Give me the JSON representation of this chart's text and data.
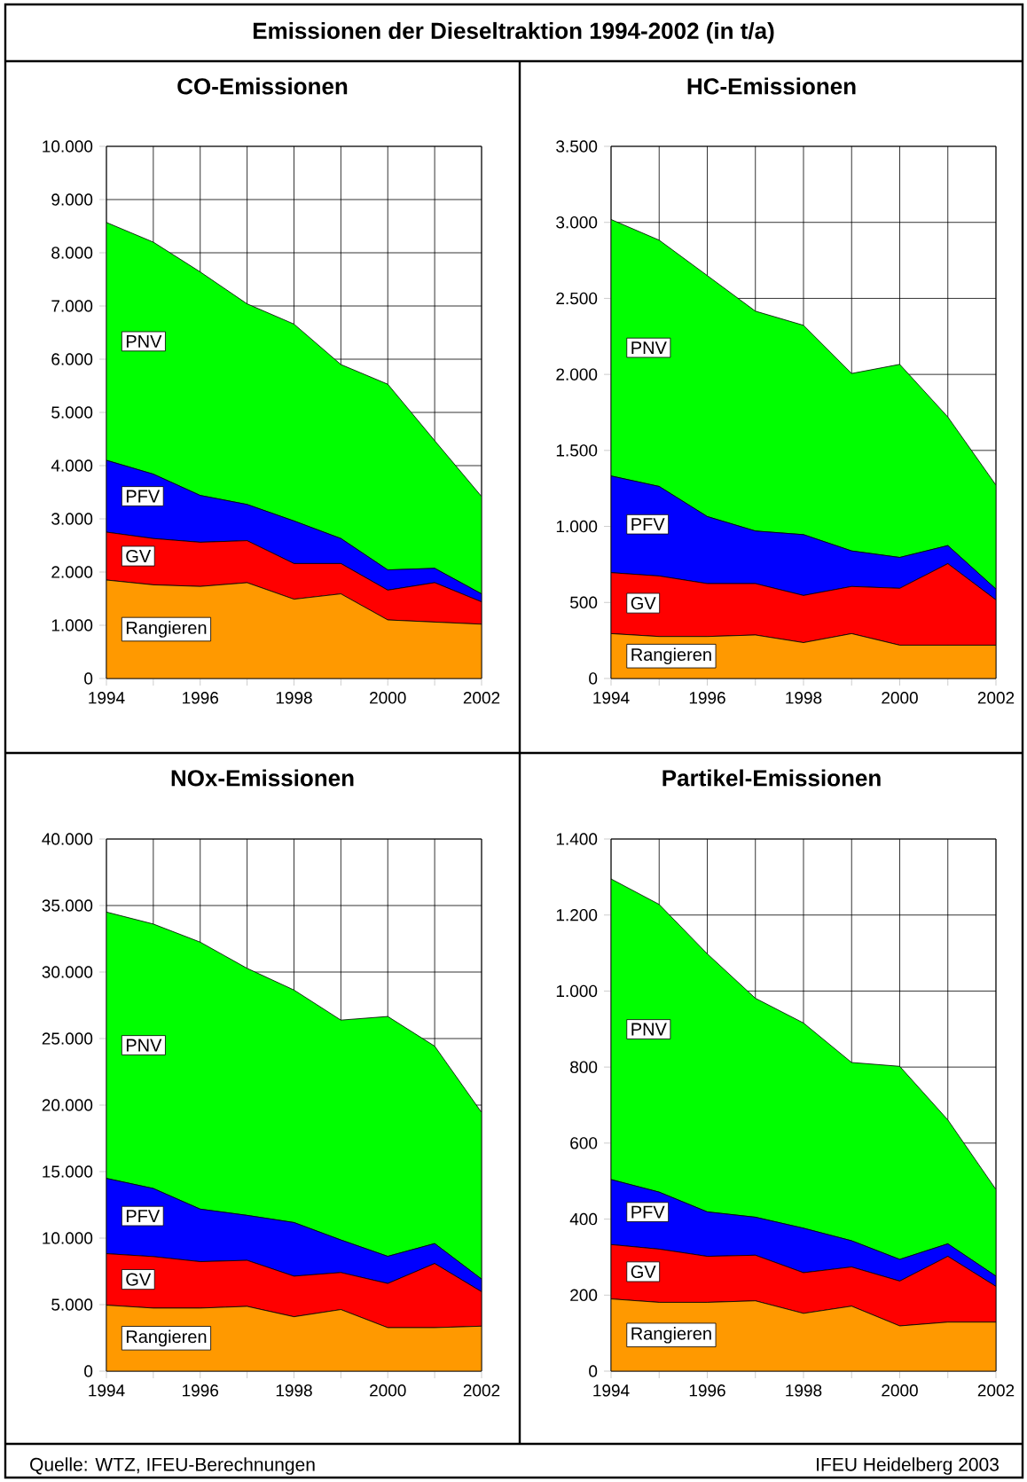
{
  "chart_data": [
    {
      "type": "area",
      "title": "CO-Emissionen",
      "stacked": true,
      "grid": true,
      "annotations": [
        "Emissionen der Dieseltraktion 1994-2002 (in t/a)",
        "Quelle: WTZ, IFEU-Berechnungen",
        "IFEU Heidelberg 2003"
      ],
      "x": [
        1994,
        1995,
        1996,
        1997,
        1998,
        1999,
        2000,
        2001,
        2002
      ],
      "xlim": [
        1994,
        2002
      ],
      "xticks": [
        1994,
        {
          "value": 1995,
          "label": null
        },
        1996,
        {
          "value": 1997,
          "label": null
        },
        1998,
        {
          "value": 1999,
          "label": null
        },
        2000,
        {
          "value": 2001,
          "label": null
        },
        2002
      ],
      "ylim": [
        0,
        10000
      ],
      "yticks": [
        0,
        {
          "value": 1000,
          "label": "1.000"
        },
        {
          "value": 2000,
          "label": "2.000"
        },
        {
          "value": 3000,
          "label": "3.000"
        },
        {
          "value": 4000,
          "label": "4.000"
        },
        {
          "value": 5000,
          "label": "5.000"
        },
        {
          "value": 6000,
          "label": "6.000"
        },
        {
          "value": 7000,
          "label": "7.000"
        },
        {
          "value": 8000,
          "label": "8.000"
        },
        {
          "value": 9000,
          "label": "9.000"
        },
        {
          "value": 10000,
          "label": "10.000"
        }
      ],
      "series": [
        {
          "name": "Rangieren",
          "color": "#ff9900",
          "values": [
            1850,
            1760,
            1730,
            1800,
            1490,
            1590,
            1100,
            1060,
            1020
          ]
        },
        {
          "name": "GV",
          "color": "#ff0000",
          "values": [
            900,
            870,
            830,
            790,
            670,
            570,
            560,
            740,
            420
          ]
        },
        {
          "name": "PFV",
          "color": "#0000ff",
          "values": [
            1350,
            1210,
            880,
            680,
            800,
            470,
            380,
            270,
            150
          ]
        },
        {
          "name": "PNV",
          "color": "#00ff00",
          "values": [
            4470,
            4360,
            4200,
            3770,
            3700,
            3270,
            3490,
            2400,
            1830
          ]
        }
      ]
    },
    {
      "type": "area",
      "title": "HC-Emissionen",
      "stacked": true,
      "grid": true,
      "x": [
        1994,
        1995,
        1996,
        1997,
        1998,
        1999,
        2000,
        2001,
        2002
      ],
      "xlim": [
        1994,
        2002
      ],
      "xticks": [
        1994,
        {
          "value": 1995,
          "label": null
        },
        1996,
        {
          "value": 1997,
          "label": null
        },
        1998,
        {
          "value": 1999,
          "label": null
        },
        2000,
        {
          "value": 2001,
          "label": null
        },
        2002
      ],
      "ylim": [
        0,
        3500
      ],
      "yticks": [
        0,
        500,
        {
          "value": 1000,
          "label": "1.000"
        },
        {
          "value": 1500,
          "label": "1.500"
        },
        {
          "value": 2000,
          "label": "2.000"
        },
        {
          "value": 2500,
          "label": "2.500"
        },
        {
          "value": 3000,
          "label": "3.000"
        },
        {
          "value": 3500,
          "label": "3.500"
        }
      ],
      "series": [
        {
          "name": "Rangieren",
          "color": "#ff9900",
          "values": [
            295,
            276,
            276,
            286,
            236,
            295,
            219,
            219,
            219
          ]
        },
        {
          "name": "GV",
          "color": "#ff0000",
          "values": [
            401,
            398,
            348,
            338,
            310,
            310,
            374,
            536,
            298
          ]
        },
        {
          "name": "PFV",
          "color": "#0000ff",
          "values": [
            636,
            589,
            441,
            346,
            400,
            234,
            203,
            119,
            71
          ]
        },
        {
          "name": "PNV",
          "color": "#00ff00",
          "values": [
            1687,
            1620,
            1585,
            1446,
            1377,
            1167,
            1270,
            846,
            684
          ]
        }
      ]
    },
    {
      "type": "area",
      "title": "NOx-Emissionen",
      "stacked": true,
      "grid": true,
      "x": [
        1994,
        1995,
        1996,
        1997,
        1998,
        1999,
        2000,
        2001,
        2002
      ],
      "xlim": [
        1994,
        2002
      ],
      "xticks": [
        1994,
        {
          "value": 1995,
          "label": null
        },
        1996,
        {
          "value": 1997,
          "label": null
        },
        1998,
        {
          "value": 1999,
          "label": null
        },
        2000,
        {
          "value": 2001,
          "label": null
        },
        2002
      ],
      "ylim": [
        0,
        40000
      ],
      "yticks": [
        0,
        {
          "value": 5000,
          "label": "5.000"
        },
        {
          "value": 10000,
          "label": "10.000"
        },
        {
          "value": 15000,
          "label": "15.000"
        },
        {
          "value": 20000,
          "label": "20.000"
        },
        {
          "value": 25000,
          "label": "25.000"
        },
        {
          "value": 30000,
          "label": "30.000"
        },
        {
          "value": 35000,
          "label": "35.000"
        },
        {
          "value": 40000,
          "label": "40.000"
        }
      ],
      "series": [
        {
          "name": "Rangieren",
          "color": "#ff9900",
          "values": [
            4960,
            4740,
            4740,
            4870,
            4090,
            4630,
            3270,
            3270,
            3380
          ]
        },
        {
          "name": "GV",
          "color": "#ff0000",
          "values": [
            3870,
            3870,
            3490,
            3460,
            3050,
            2780,
            3320,
            4820,
            2590
          ]
        },
        {
          "name": "PFV",
          "color": "#0000ff",
          "values": [
            5660,
            5120,
            3950,
            3380,
            4030,
            2450,
            2040,
            1500,
            950
          ]
        },
        {
          "name": "PNV",
          "color": "#00ff00",
          "values": [
            20020,
            19880,
            20070,
            18570,
            17480,
            16530,
            18030,
            14840,
            12530
          ]
        }
      ]
    },
    {
      "type": "area",
      "title": "Partikel-Emissionen",
      "stacked": true,
      "grid": true,
      "x": [
        1994,
        1995,
        1996,
        1997,
        1998,
        1999,
        2000,
        2001,
        2002
      ],
      "xlim": [
        1994,
        2002
      ],
      "xticks": [
        1994,
        {
          "value": 1995,
          "label": null
        },
        1996,
        {
          "value": 1997,
          "label": null
        },
        1998,
        {
          "value": 1999,
          "label": null
        },
        2000,
        {
          "value": 2001,
          "label": null
        },
        2002
      ],
      "ylim": [
        0,
        1400
      ],
      "yticks": [
        0,
        200,
        400,
        600,
        800,
        {
          "value": 1000,
          "label": "1.000"
        },
        {
          "value": 1200,
          "label": "1.200"
        },
        {
          "value": 1400,
          "label": "1.400"
        }
      ],
      "series": [
        {
          "name": "Rangieren",
          "color": "#ff9900",
          "values": [
            190,
            181,
            181,
            185,
            152,
            171,
            119,
            129,
            129
          ]
        },
        {
          "name": "GV",
          "color": "#ff0000",
          "values": [
            143,
            140,
            121,
            120,
            107,
            103,
            118,
            173,
            94
          ]
        },
        {
          "name": "PFV",
          "color": "#0000ff",
          "values": [
            171,
            150,
            117,
            100,
            117,
            69,
            57,
            33,
            27
          ]
        },
        {
          "name": "PNV",
          "color": "#00ff00",
          "values": [
            791,
            757,
            679,
            576,
            540,
            469,
            508,
            326,
            228
          ]
        }
      ]
    }
  ]
}
